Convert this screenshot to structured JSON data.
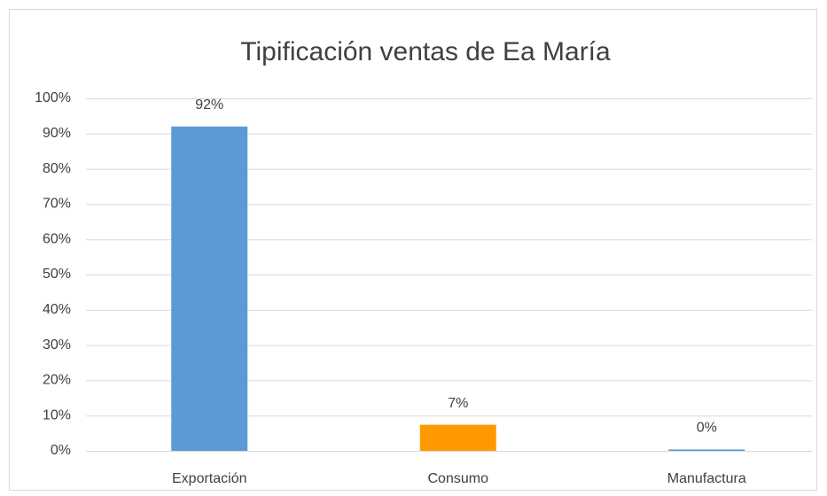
{
  "chart_data": {
    "type": "bar",
    "title": "Tipificación ventas de Ea María",
    "categories": [
      "Exportación",
      "Consumo",
      "Manufactura"
    ],
    "values": [
      92,
      7.4,
      0.4
    ],
    "value_labels": [
      "92%",
      "7%",
      "0%"
    ],
    "colors": [
      "#5b9bd5",
      "#ff9900",
      "#5b9bd5"
    ],
    "ylim": [
      0,
      100
    ],
    "yticks": [
      {
        "value": 0,
        "label": "0%"
      },
      {
        "value": 10,
        "label": "10%"
      },
      {
        "value": 20,
        "label": "20%"
      },
      {
        "value": 30,
        "label": "30%"
      },
      {
        "value": 40,
        "label": "40%"
      },
      {
        "value": 50,
        "label": "50%"
      },
      {
        "value": 60,
        "label": "60%"
      },
      {
        "value": 70,
        "label": "70%"
      },
      {
        "value": 80,
        "label": "80%"
      },
      {
        "value": 90,
        "label": "90%"
      },
      {
        "value": 100,
        "label": "100%"
      }
    ],
    "grid": true
  }
}
